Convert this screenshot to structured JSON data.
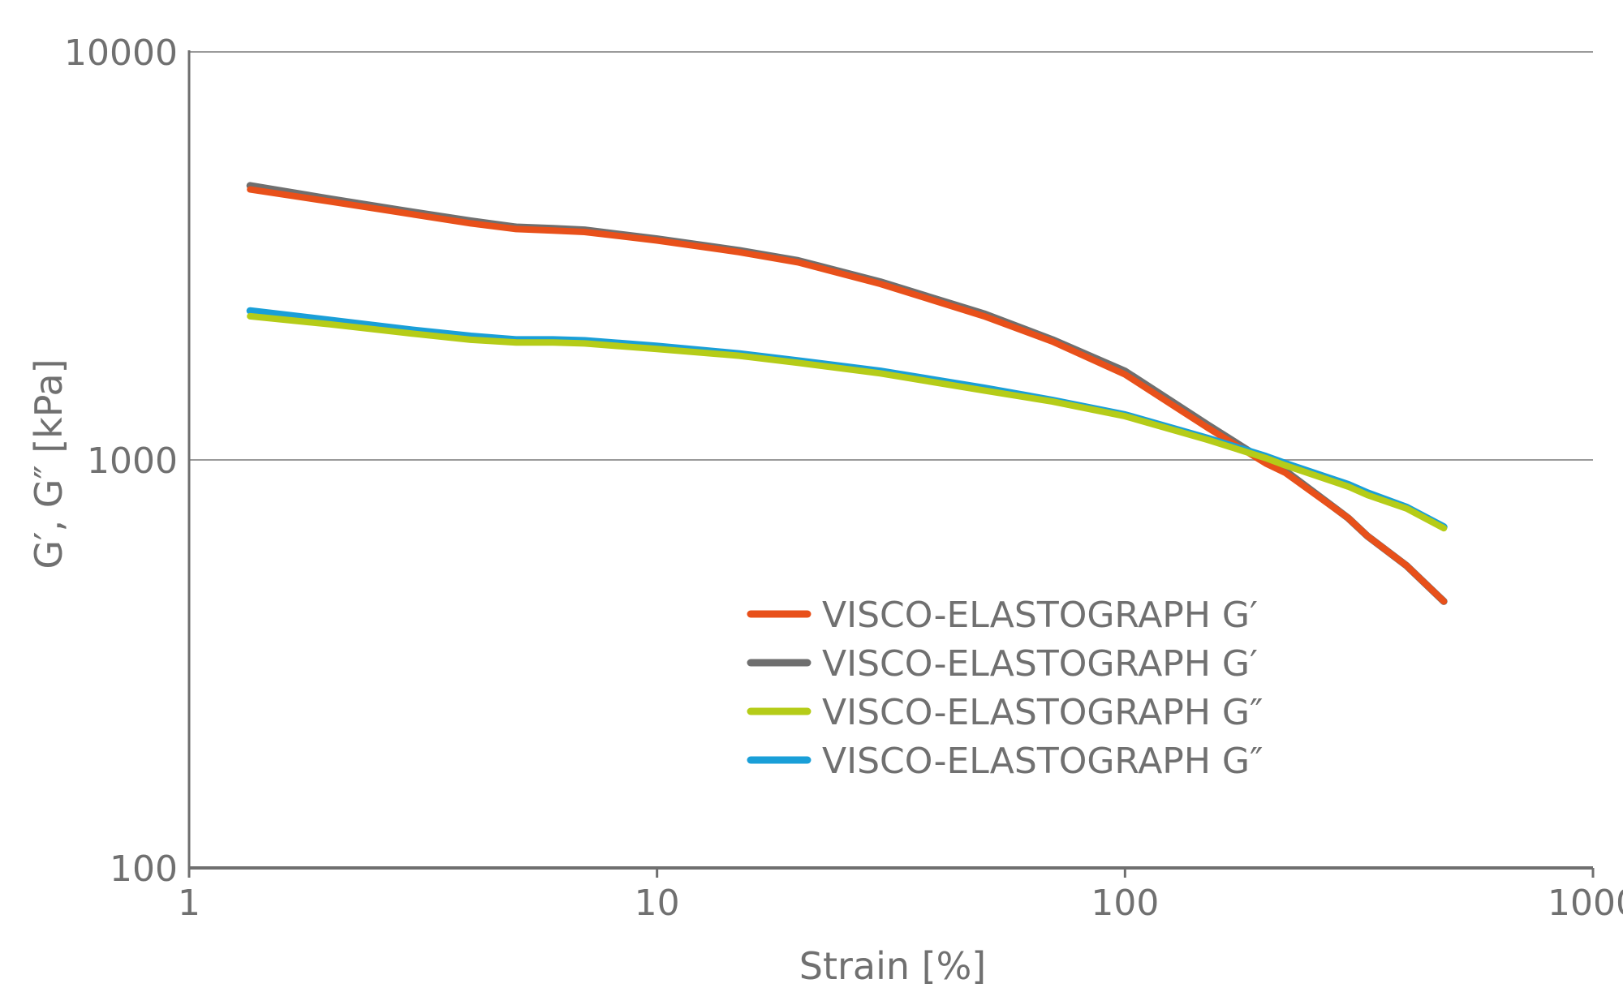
{
  "chart_data": {
    "type": "line",
    "xlabel": "Strain [%]",
    "ylabel": "G′, G″ [kPa]",
    "x_scale": "log",
    "y_scale": "log",
    "xlim": [
      1,
      1000
    ],
    "ylim": [
      100,
      10000
    ],
    "x_ticks": [
      "1",
      "10",
      "100",
      "1000"
    ],
    "y_ticks": [
      "100",
      "1000",
      "10000"
    ],
    "grid": "horizontal major lines",
    "legend_position": "center-right, inside plot",
    "series": [
      {
        "name": "VISCO-ELASTOGRAPH G′",
        "color": "#e8501a",
        "x": [
          1.35,
          2,
          3,
          4,
          5,
          6,
          7,
          10,
          15,
          20,
          30,
          50,
          70,
          100,
          150,
          200,
          220,
          300,
          330,
          400,
          480
        ],
        "y": [
          4600,
          4300,
          4000,
          3800,
          3680,
          3650,
          3620,
          3450,
          3230,
          3050,
          2700,
          2250,
          1950,
          1620,
          1200,
          980,
          930,
          720,
          650,
          550,
          450
        ]
      },
      {
        "name": "VISCO-ELASTOGRAPH G′",
        "color": "#6f6f6f",
        "x": [
          1.35,
          2,
          3,
          4,
          5,
          6,
          7,
          10,
          15,
          20,
          30,
          50,
          70,
          100,
          150,
          200,
          220,
          300,
          330,
          400,
          480
        ],
        "y": [
          4700,
          4360,
          4050,
          3850,
          3720,
          3690,
          3660,
          3480,
          3260,
          3080,
          2730,
          2280,
          1970,
          1650,
          1220,
          990,
          940,
          720,
          650,
          550,
          450
        ]
      },
      {
        "name": "VISCO-ELASTOGRAPH G″",
        "color": "#b5cc18",
        "x": [
          1.35,
          2,
          3,
          4,
          5,
          6,
          7,
          10,
          15,
          20,
          30,
          50,
          70,
          100,
          150,
          200,
          220,
          300,
          330,
          400,
          480
        ],
        "y": [
          2250,
          2150,
          2040,
          1970,
          1940,
          1940,
          1930,
          1870,
          1800,
          1730,
          1630,
          1480,
          1390,
          1280,
          1120,
          1010,
          970,
          860,
          820,
          760,
          680
        ]
      },
      {
        "name": "VISCO-ELASTOGRAPH G″",
        "color": "#1a9fd8",
        "x": [
          1.35,
          2,
          3,
          4,
          5,
          6,
          7,
          10,
          15,
          20,
          30,
          50,
          70,
          100,
          150,
          200,
          220,
          300,
          330,
          400,
          480
        ],
        "y": [
          2320,
          2200,
          2080,
          2010,
          1970,
          1970,
          1960,
          1900,
          1820,
          1750,
          1650,
          1500,
          1400,
          1290,
          1130,
          1020,
          980,
          870,
          830,
          765,
          685
        ]
      }
    ]
  }
}
